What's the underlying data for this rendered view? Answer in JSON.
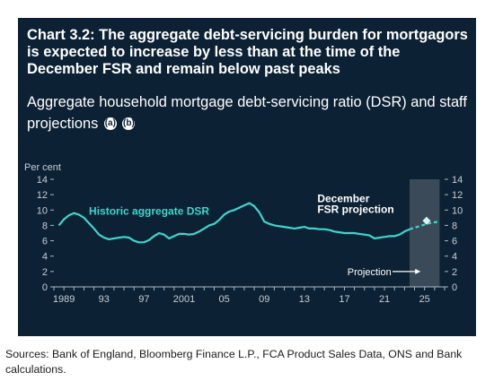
{
  "header": {
    "title": "Chart 3.2: The aggregate debt-servicing burden for mortgagors is expected to increase by less than at the time of the December FSR and remain below past peaks",
    "subtitle": "Aggregate household mortgage debt-servicing ratio (DSR) and staff projections",
    "notes": [
      "(a)",
      "(b)"
    ]
  },
  "colors": {
    "background": "#0c2134",
    "series": "#3ed6cc",
    "marker": "#d9f3f4",
    "text": "#ffffff",
    "axis_text": "#c8ced6",
    "projection_band": "#4a5866"
  },
  "chart_data": {
    "type": "line",
    "ylabel": "Per cent",
    "ylim": [
      0,
      14
    ],
    "yticks": [
      0,
      2,
      4,
      6,
      8,
      10,
      12,
      14
    ],
    "xlim": [
      1988,
      2027
    ],
    "xtick_labels": [
      {
        "x": 1989,
        "label": "1989"
      },
      {
        "x": 1993,
        "label": "93"
      },
      {
        "x": 1997,
        "label": "97"
      },
      {
        "x": 2001,
        "label": "2001"
      },
      {
        "x": 2005,
        "label": "05"
      },
      {
        "x": 2009,
        "label": "09"
      },
      {
        "x": 2013,
        "label": "13"
      },
      {
        "x": 2017,
        "label": "17"
      },
      {
        "x": 2021,
        "label": "21"
      },
      {
        "x": 2025,
        "label": "25"
      }
    ],
    "projection_period": [
      2023.5,
      2026.5
    ],
    "projection_label": "Projection",
    "series": [
      {
        "name": "Historic aggregate DSR",
        "style": "solid",
        "points": [
          [
            1988.5,
            8.0
          ],
          [
            1989.0,
            8.8
          ],
          [
            1989.5,
            9.3
          ],
          [
            1990.0,
            9.6
          ],
          [
            1990.5,
            9.4
          ],
          [
            1991.0,
            9.0
          ],
          [
            1991.5,
            8.3
          ],
          [
            1992.0,
            7.6
          ],
          [
            1992.5,
            6.8
          ],
          [
            1993.0,
            6.4
          ],
          [
            1993.5,
            6.2
          ],
          [
            1994.0,
            6.3
          ],
          [
            1994.5,
            6.4
          ],
          [
            1995.0,
            6.5
          ],
          [
            1995.5,
            6.4
          ],
          [
            1996.0,
            6.0
          ],
          [
            1996.5,
            5.8
          ],
          [
            1997.0,
            5.8
          ],
          [
            1997.5,
            6.1
          ],
          [
            1998.0,
            6.6
          ],
          [
            1998.5,
            7.0
          ],
          [
            1999.0,
            6.8
          ],
          [
            1999.5,
            6.3
          ],
          [
            2000.0,
            6.6
          ],
          [
            2000.5,
            6.9
          ],
          [
            2001.0,
            6.9
          ],
          [
            2001.5,
            6.8
          ],
          [
            2002.0,
            6.9
          ],
          [
            2002.5,
            7.2
          ],
          [
            2003.0,
            7.6
          ],
          [
            2003.5,
            8.0
          ],
          [
            2004.0,
            8.2
          ],
          [
            2004.5,
            8.7
          ],
          [
            2005.0,
            9.4
          ],
          [
            2005.5,
            9.8
          ],
          [
            2006.0,
            10.0
          ],
          [
            2006.5,
            10.3
          ],
          [
            2007.0,
            10.6
          ],
          [
            2007.5,
            10.9
          ],
          [
            2008.0,
            10.5
          ],
          [
            2008.5,
            9.7
          ],
          [
            2009.0,
            8.5
          ],
          [
            2009.5,
            8.2
          ],
          [
            2010.0,
            8.0
          ],
          [
            2010.5,
            7.9
          ],
          [
            2011.0,
            7.8
          ],
          [
            2011.5,
            7.7
          ],
          [
            2012.0,
            7.6
          ],
          [
            2012.5,
            7.7
          ],
          [
            2013.0,
            7.8
          ],
          [
            2013.5,
            7.6
          ],
          [
            2014.0,
            7.6
          ],
          [
            2014.5,
            7.5
          ],
          [
            2015.0,
            7.5
          ],
          [
            2015.5,
            7.4
          ],
          [
            2016.0,
            7.2
          ],
          [
            2016.5,
            7.1
          ],
          [
            2017.0,
            7.0
          ],
          [
            2017.5,
            7.0
          ],
          [
            2018.0,
            7.0
          ],
          [
            2018.5,
            6.9
          ],
          [
            2019.0,
            6.8
          ],
          [
            2019.5,
            6.7
          ],
          [
            2020.0,
            6.3
          ],
          [
            2020.5,
            6.4
          ],
          [
            2021.0,
            6.5
          ],
          [
            2021.5,
            6.6
          ],
          [
            2022.0,
            6.6
          ],
          [
            2022.5,
            6.8
          ],
          [
            2023.0,
            7.2
          ],
          [
            2023.5,
            7.5
          ]
        ]
      },
      {
        "name": "",
        "style": "dashed",
        "points": [
          [
            2023.5,
            7.5
          ],
          [
            2024.0,
            7.7
          ],
          [
            2024.5,
            7.9
          ],
          [
            2025.0,
            8.1
          ],
          [
            2025.5,
            8.3
          ],
          [
            2026.0,
            8.4
          ],
          [
            2026.5,
            8.5
          ]
        ]
      },
      {
        "name": "December FSR projection",
        "style": "marker",
        "points": [
          [
            2025.2,
            8.6
          ]
        ]
      }
    ],
    "annotations": [
      {
        "text": "Historic aggregate DSR",
        "x": 1991.5,
        "y": 9.4
      },
      {
        "text": "December",
        "x": 2014.3,
        "y": 11.0
      },
      {
        "text": "FSR projection",
        "x": 2014.3,
        "y": 9.6
      }
    ]
  },
  "sources": "Sources: Bank of England, Bloomberg Finance L.P., FCA Product Sales Data, ONS and Bank calculations."
}
